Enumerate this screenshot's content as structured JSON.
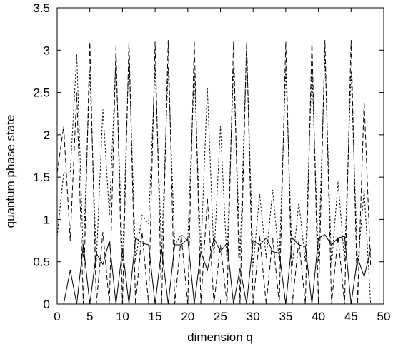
{
  "chart_data": {
    "type": "line",
    "title": "",
    "xlabel": "dimension q",
    "ylabel": "quantum phase state",
    "xlim": [
      0,
      50
    ],
    "ylim": [
      0,
      3.5
    ],
    "xticks": [
      0,
      5,
      10,
      15,
      20,
      25,
      30,
      35,
      40,
      45,
      50
    ],
    "yticks": [
      0,
      0.5,
      1,
      1.5,
      2,
      2.5,
      3,
      3.5
    ],
    "xtick_labels": [
      "0",
      "5",
      "10",
      "15",
      "20",
      "25",
      "30",
      "35",
      "40",
      "45",
      "50"
    ],
    "ytick_labels": [
      "0",
      "0.5",
      "1",
      "1.5",
      "2",
      "2.5",
      "3",
      "3.5"
    ],
    "grid": false,
    "legend": "none",
    "series": [
      {
        "style": "solid",
        "x": [
          0,
          1,
          2,
          3,
          4,
          5,
          6,
          7,
          8,
          9,
          10,
          11,
          12,
          13,
          14,
          15,
          16,
          17,
          18,
          19,
          20,
          21,
          22,
          23,
          24,
          25,
          26,
          27,
          28,
          29,
          30,
          31,
          32,
          33,
          34,
          35,
          36,
          37,
          38,
          39,
          40,
          41,
          42,
          43,
          44,
          45,
          46,
          47,
          48
        ],
        "values": [
          0,
          0,
          0.4,
          0,
          0.7,
          0,
          0.6,
          0.47,
          0.75,
          0,
          0.65,
          0,
          0.78,
          0.72,
          0.7,
          0,
          0.65,
          0,
          0.7,
          0.7,
          0.77,
          0,
          0.62,
          0.4,
          0.78,
          0.62,
          0.72,
          0,
          0.42,
          0,
          0.75,
          0.7,
          0.78,
          0.62,
          0.6,
          0,
          0.78,
          0.7,
          0.68,
          0,
          0.78,
          0.82,
          0.7,
          0.78,
          0.8,
          0,
          0.55,
          0.32,
          0.65
        ]
      },
      {
        "style": "dashed",
        "x": [
          0,
          1,
          2,
          3,
          4,
          5,
          6,
          7,
          8,
          9,
          10,
          11,
          12,
          13,
          14,
          15,
          16,
          17,
          18,
          19,
          20,
          21,
          22,
          23,
          24,
          25,
          26,
          27,
          28,
          29,
          30,
          31,
          32,
          33,
          34,
          35,
          36,
          37,
          38,
          39,
          40,
          41,
          42,
          43,
          44,
          45,
          46,
          47,
          48
        ],
        "values": [
          1.55,
          2.1,
          0.75,
          2.5,
          0,
          3.1,
          0,
          0.85,
          0,
          3.05,
          0,
          3.12,
          0,
          0.85,
          0,
          3.1,
          0,
          3.12,
          0,
          0.8,
          0,
          3.1,
          0,
          1.25,
          0,
          0.7,
          0,
          3.1,
          0,
          3.1,
          0,
          0.8,
          0,
          0.78,
          0,
          3.1,
          0,
          0.75,
          0,
          3.12,
          0,
          3.12,
          0,
          0.8,
          0,
          3.12,
          0,
          2.4,
          0.45
        ]
      },
      {
        "style": "dotted",
        "x": [
          0,
          1,
          2,
          3,
          4,
          5,
          6,
          7,
          8,
          9,
          10,
          11,
          12,
          13,
          14,
          15,
          16,
          17,
          18,
          19,
          20,
          21,
          22,
          23,
          24,
          25,
          26,
          27,
          28,
          29,
          30,
          31,
          32,
          33,
          34,
          35,
          36,
          37,
          38,
          39,
          40,
          41,
          42,
          43,
          44,
          45,
          46,
          47,
          48
        ],
        "values": [
          0.8,
          1.55,
          1.55,
          2.95,
          0.55,
          2.75,
          0.5,
          2.3,
          1.05,
          2.9,
          0.5,
          2.95,
          0.5,
          1.05,
          0.95,
          2.8,
          0.6,
          2.8,
          0.7,
          0.82,
          0.75,
          2.75,
          0.6,
          2.55,
          0.55,
          2.1,
          0.5,
          2.8,
          0.55,
          3.05,
          0.45,
          1.3,
          0.55,
          1.35,
          0.5,
          2.8,
          0.45,
          1.2,
          0.5,
          2.8,
          0.5,
          2.95,
          0.45,
          1.45,
          0.5,
          2.75,
          0.45,
          1.35,
          0
        ]
      }
    ]
  }
}
